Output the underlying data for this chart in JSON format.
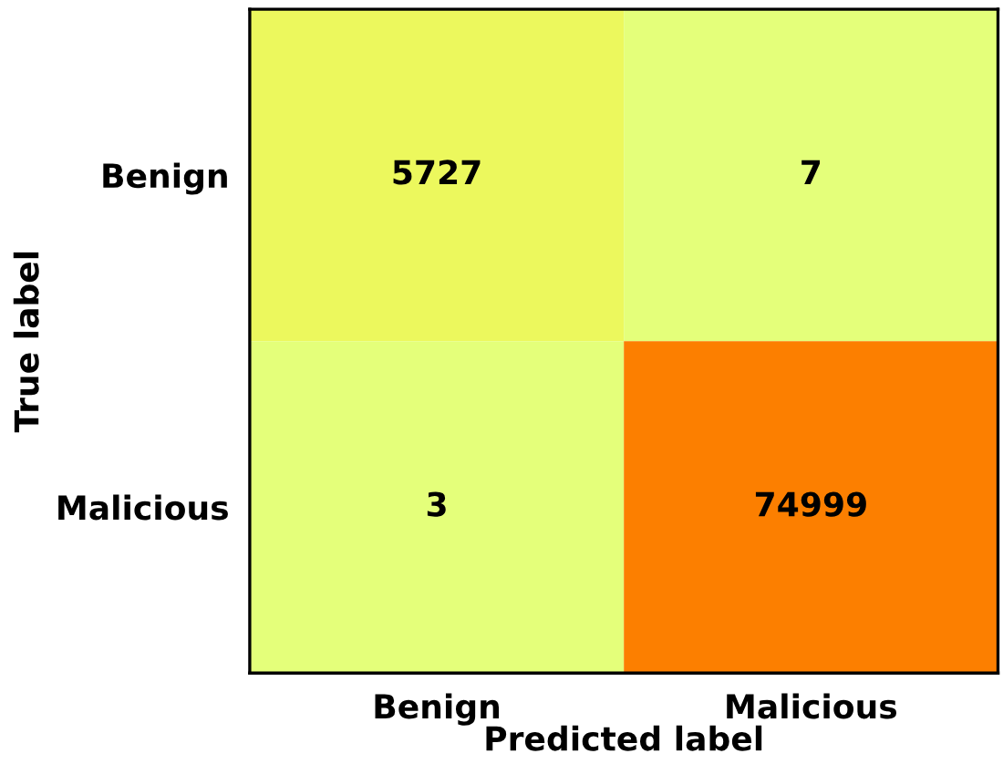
{
  "chart_data": {
    "type": "heatmap",
    "xlabel": "Predicted label",
    "ylabel": "True label",
    "categories": [
      "Benign",
      "Malicious"
    ],
    "y_categories": [
      "Benign",
      "Malicious"
    ],
    "cells": [
      [
        5727,
        7
      ],
      [
        3,
        74999
      ]
    ],
    "data_labels": true
  }
}
